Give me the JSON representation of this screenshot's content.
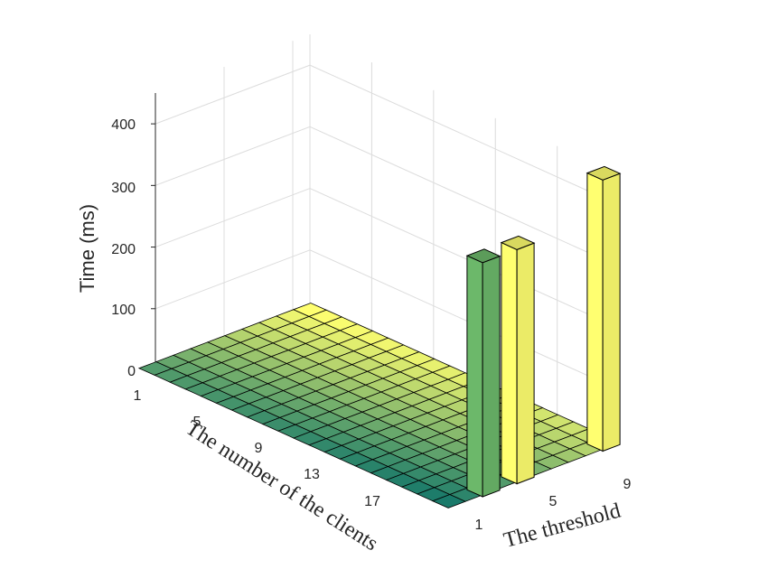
{
  "chart_data": {
    "type": "bar3d",
    "title": "",
    "xlabel": "The number of the clients",
    "ylabel": "The threshold",
    "zlabel": "Time (ms)",
    "x_ticks": [
      "1",
      "5",
      "9",
      "13",
      "17"
    ],
    "y_ticks": [
      "1",
      "5",
      "9"
    ],
    "z_ticks": [
      "0",
      "100",
      "200",
      "300",
      "400"
    ],
    "x_range": [
      1,
      20
    ],
    "y_range": [
      1,
      10
    ],
    "zlim": [
      0,
      450
    ],
    "grid": true,
    "colormap": [
      "#1a7a6a",
      "#ffff70"
    ],
    "tall_bars": [
      {
        "clients": 20,
        "threshold": 3,
        "time": 380,
        "color": "#6cb86a"
      },
      {
        "clients": 20,
        "threshold": 5,
        "time": 380,
        "color": "#ffff70"
      },
      {
        "clients": 20,
        "threshold": 10,
        "time": 440,
        "color": "#ffff70"
      }
    ],
    "base_time": 3
  }
}
